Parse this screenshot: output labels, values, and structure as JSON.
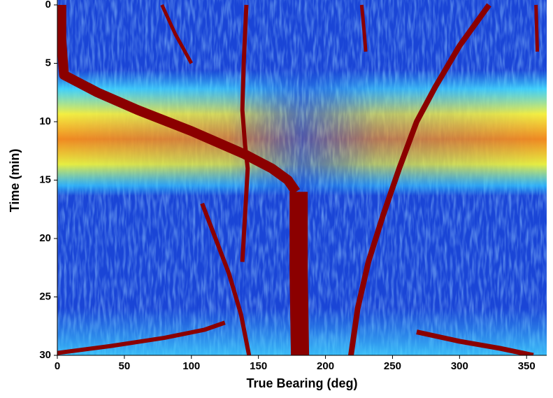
{
  "chart_data": {
    "type": "line",
    "x_label": "True Bearing (deg)",
    "y_label": "Time (min)",
    "xlim": [
      0,
      365
    ],
    "ylim": [
      0,
      30
    ],
    "xticks": [
      0,
      50,
      100,
      150,
      200,
      250,
      300,
      350
    ],
    "yticks": [
      0,
      5,
      10,
      15,
      20,
      25,
      30
    ],
    "y_inverted": true,
    "series": [
      {
        "color": "#8b0000",
        "width": 14,
        "x": [
          3,
          3,
          5,
          30,
          60,
          100,
          140,
          160,
          172,
          178
        ],
        "values": [
          0,
          3,
          6,
          7.5,
          9,
          10.8,
          12.8,
          14,
          15,
          16
        ]
      },
      {
        "color": "#8b0000",
        "width": 26,
        "x": [
          180,
          180,
          181
        ],
        "values": [
          16,
          23,
          30
        ]
      },
      {
        "color": "#8b0000",
        "width": 6,
        "x": [
          141,
          139,
          138,
          140,
          142,
          140,
          138
        ],
        "values": [
          0,
          5,
          9,
          12,
          14,
          18,
          22
        ]
      },
      {
        "color": "#8b0000",
        "width": 6,
        "x": [
          108,
          118,
          128,
          137,
          143
        ],
        "values": [
          17,
          20,
          23,
          26.5,
          30
        ]
      },
      {
        "color": "#8b0000",
        "width": 5,
        "x": [
          78,
          88,
          100
        ],
        "values": [
          0,
          2.5,
          5
        ]
      },
      {
        "color": "#8b0000",
        "width": 8,
        "x": [
          322,
          300,
          282,
          268,
          255,
          243,
          232,
          224,
          219
        ],
        "values": [
          0,
          3.5,
          7,
          10,
          14,
          18,
          22,
          26,
          30
        ]
      },
      {
        "color": "#8b0000",
        "width": 5,
        "x": [
          227,
          229,
          230
        ],
        "values": [
          0,
          2.5,
          4
        ]
      },
      {
        "color": "#8b0000",
        "width": 6,
        "x": [
          0,
          40,
          80,
          110,
          125
        ],
        "values": [
          29.8,
          29.2,
          28.5,
          27.8,
          27.2
        ]
      },
      {
        "color": "#8b0000",
        "width": 7,
        "x": [
          268,
          300,
          330,
          355
        ],
        "values": [
          28,
          28.8,
          29.4,
          30
        ]
      },
      {
        "color": "#8b0000",
        "width": 5,
        "x": [
          357,
          358
        ],
        "values": [
          0,
          4
        ]
      }
    ]
  }
}
